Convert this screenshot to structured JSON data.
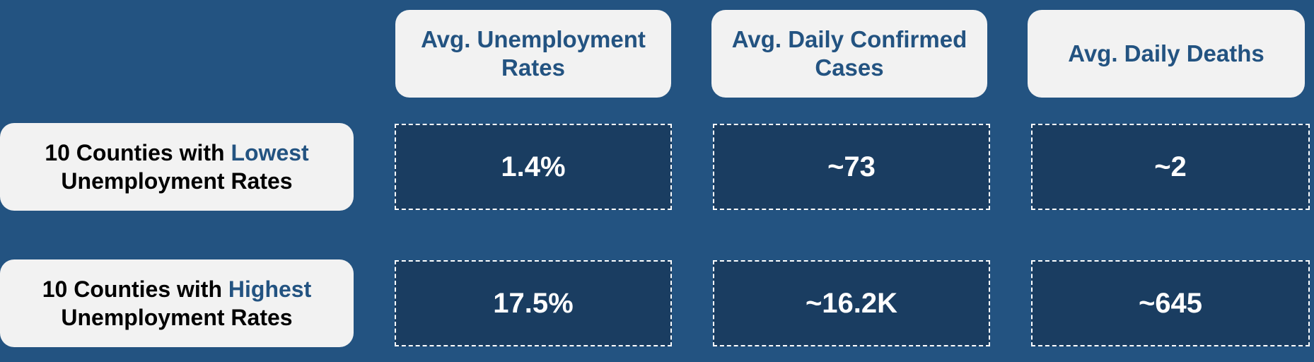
{
  "columns": [
    {
      "label": "Avg. Unemployment Rates"
    },
    {
      "label": "Avg. Daily Confirmed Cases"
    },
    {
      "label": "Avg. Daily Deaths"
    }
  ],
  "rows": [
    {
      "label_prefix": "10 Counties with",
      "label_accent": "Lowest",
      "label_suffix": "Unemployment Rates",
      "values": [
        "1.4%",
        "~73",
        "~2"
      ]
    },
    {
      "label_prefix": "10 Counties with",
      "label_accent": "Highest",
      "label_suffix": "Unemployment Rates",
      "values": [
        "17.5%",
        "~16.2K",
        "~645"
      ]
    }
  ],
  "colors": {
    "background": "#235381",
    "card": "#f2f2f2",
    "value_cell": "#1a3d61",
    "accent_text": "#235381"
  }
}
